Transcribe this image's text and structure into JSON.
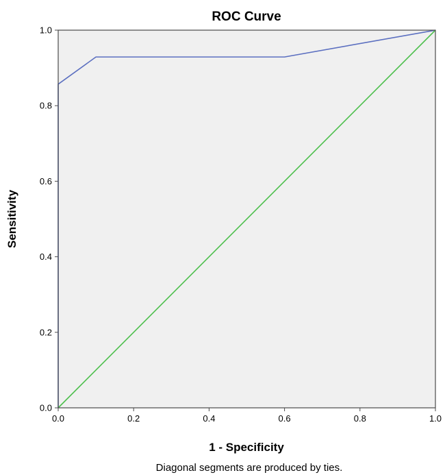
{
  "chart_data": {
    "type": "line",
    "title": "ROC Curve",
    "xlabel": "1 - Specificity",
    "ylabel": "Sensitivity",
    "footnote": "Diagonal segments are produced by ties.",
    "xlim": [
      0.0,
      1.0
    ],
    "ylim": [
      0.0,
      1.0
    ],
    "x_ticks": [
      "0.0",
      "0.2",
      "0.4",
      "0.6",
      "0.8",
      "1.0"
    ],
    "y_ticks": [
      "0.0",
      "0.2",
      "0.4",
      "0.6",
      "0.8",
      "1.0"
    ],
    "grid": false,
    "series": [
      {
        "color": "#5b6fc0",
        "points": [
          [
            0.0,
            0.0
          ],
          [
            0.0,
            0.857
          ],
          [
            0.1,
            0.929
          ],
          [
            0.6,
            0.929
          ],
          [
            1.0,
            1.0
          ]
        ]
      },
      {
        "color": "#4cbf4c",
        "points": [
          [
            0.0,
            0.0
          ],
          [
            1.0,
            1.0
          ]
        ]
      }
    ],
    "plot_background": "#f0f0f0",
    "frame_color": "#4a4a4a"
  }
}
